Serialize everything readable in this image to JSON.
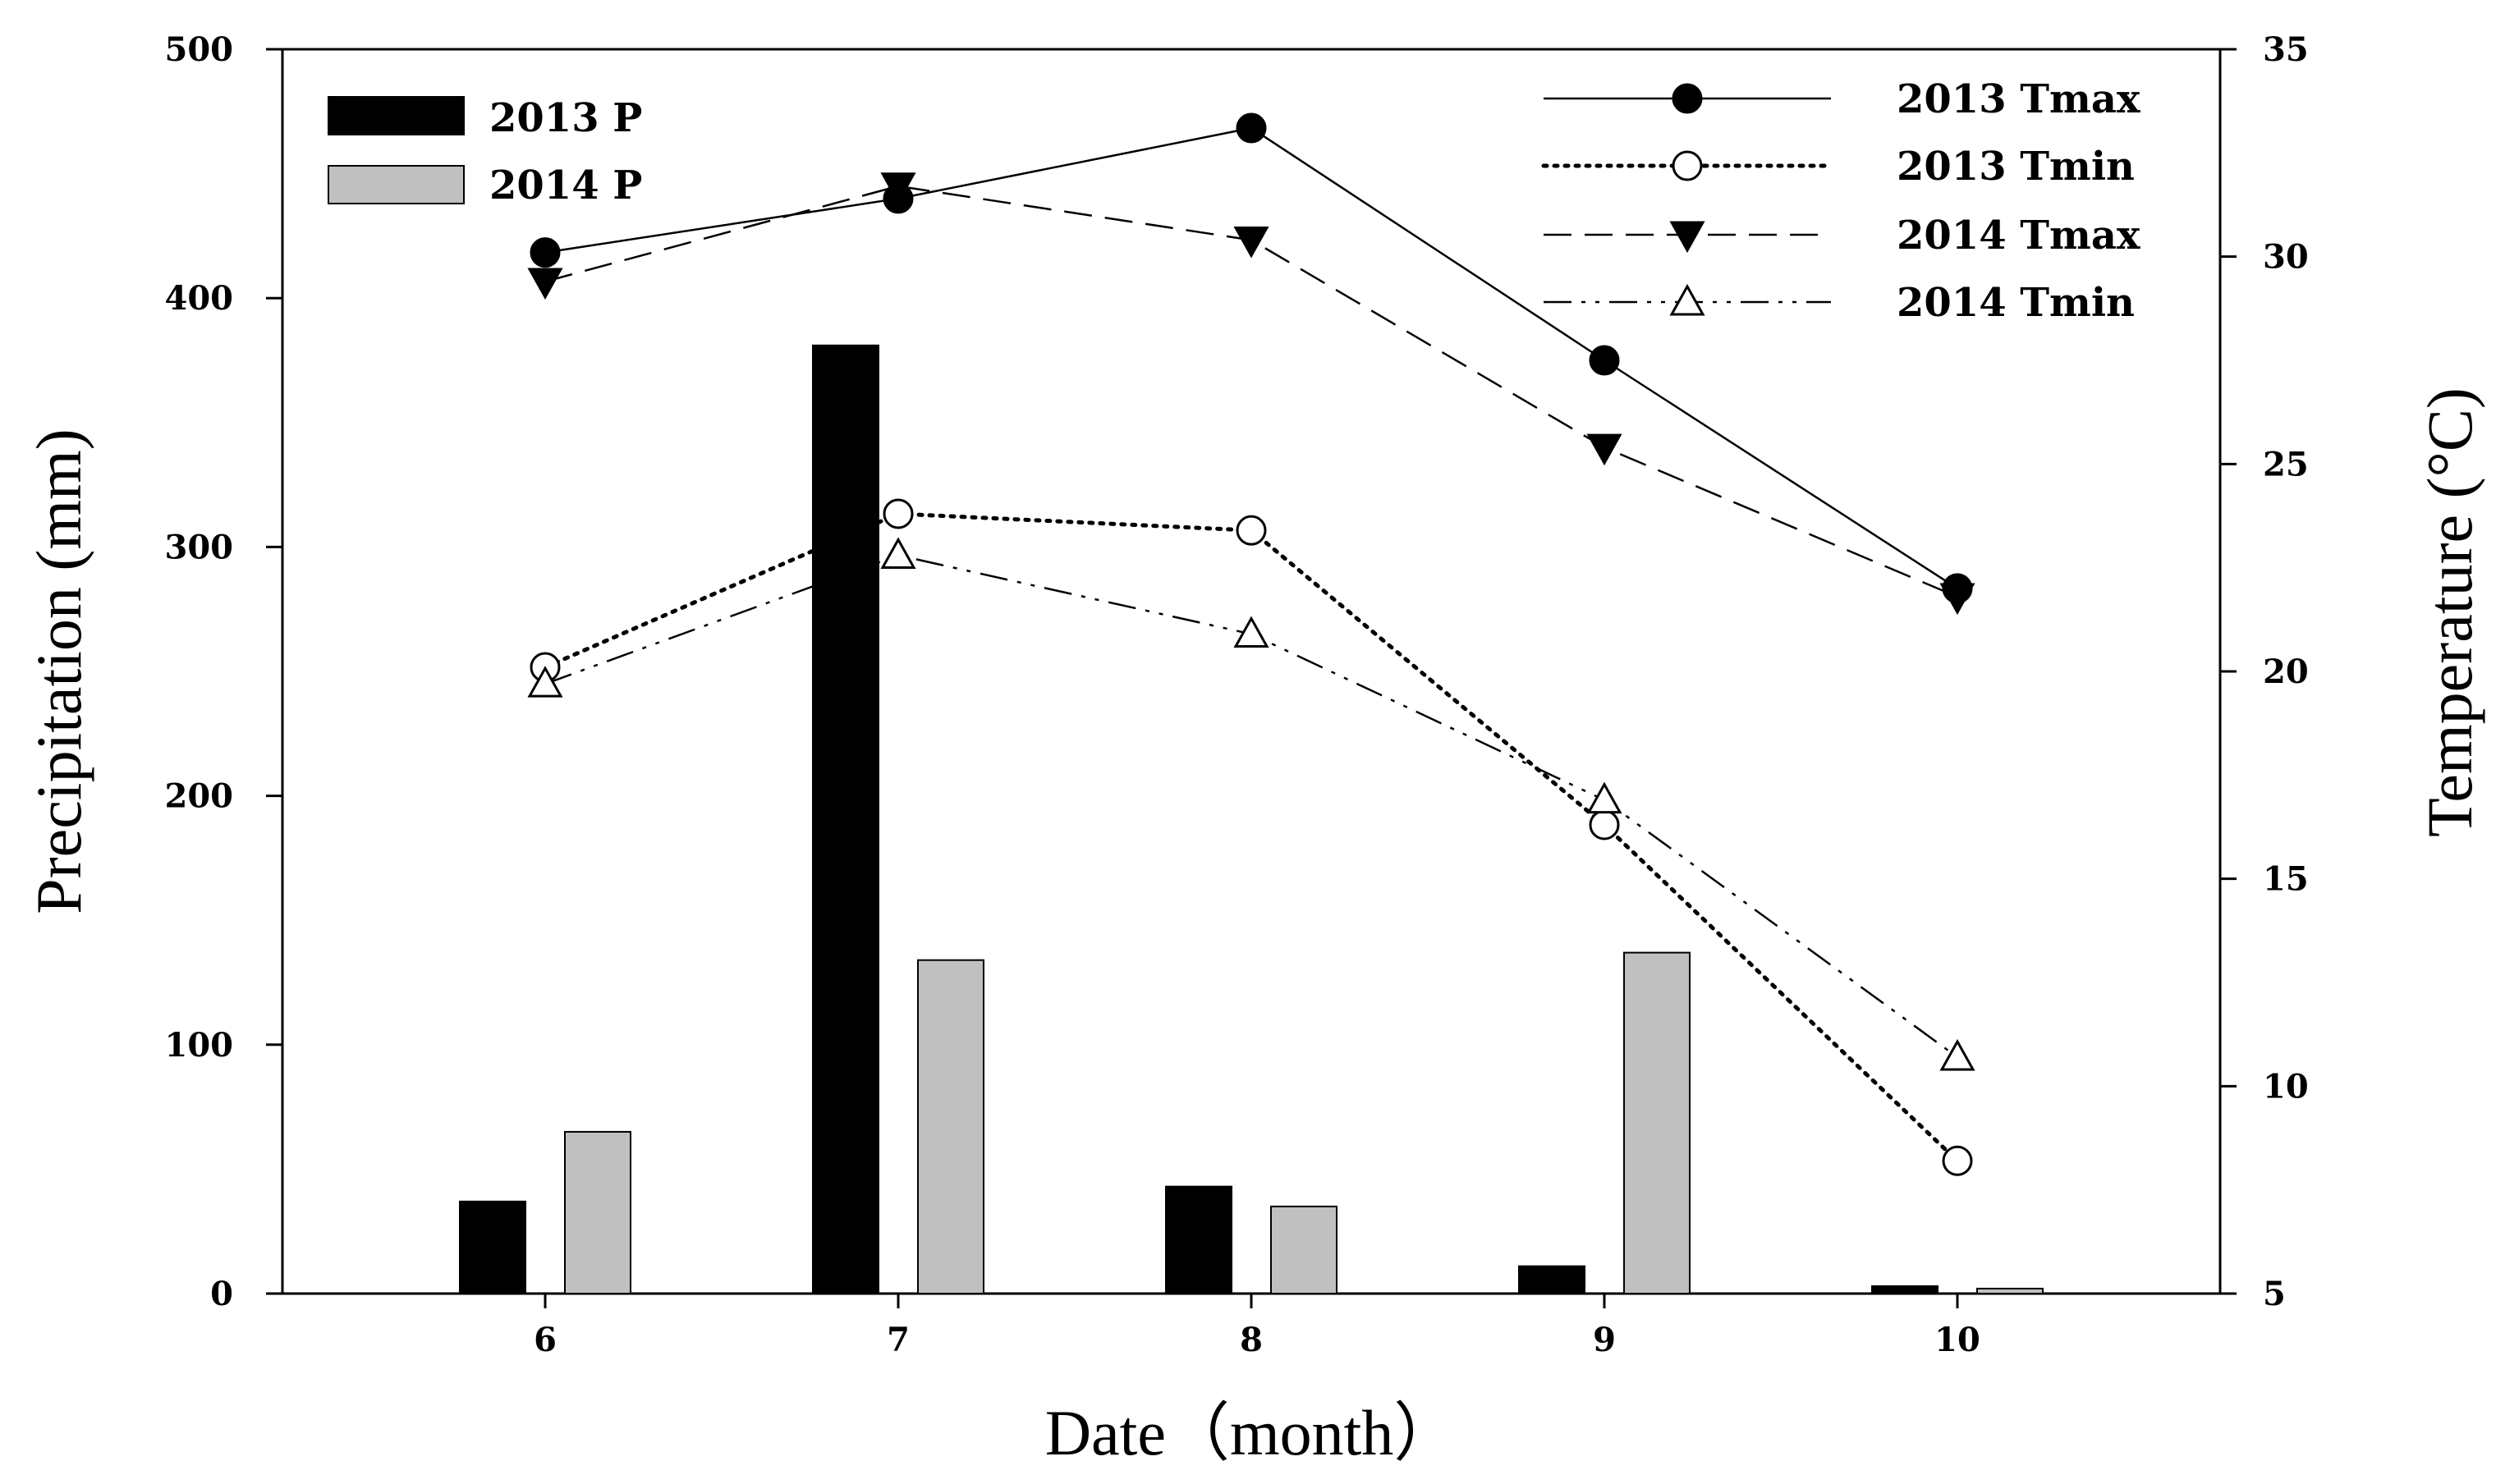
{
  "chart_data": {
    "type": "bar+line",
    "xlabel": "Date（month）",
    "ylabel_left": "Precipitation (mm)",
    "ylabel_right": "Temperature (°C)",
    "categories": [
      "6",
      "7",
      "8",
      "9",
      "10"
    ],
    "ylim_left": [
      0,
      500
    ],
    "yticks_left": [
      "0",
      "100",
      "200",
      "300",
      "400",
      "500"
    ],
    "ylim_right": [
      5,
      35
    ],
    "yticks_right": [
      "5",
      "10",
      "15",
      "20",
      "25",
      "30",
      "35"
    ],
    "bar_series": [
      {
        "name": "2013 P",
        "color": "#000000",
        "values": [
          37,
          381,
          43,
          11,
          3
        ]
      },
      {
        "name": "2014 P",
        "color": "#c0c0c0",
        "values": [
          65,
          134,
          35,
          137,
          2
        ]
      }
    ],
    "line_series": [
      {
        "name": "2013 Tmax",
        "marker": "filled-circle",
        "dash": "solid",
        "values": [
          30.1,
          31.4,
          33.1,
          27.5,
          22.0
        ]
      },
      {
        "name": "2013 Tmin",
        "marker": "open-circle",
        "dash": "dotted",
        "values": [
          20.1,
          23.8,
          23.4,
          16.3,
          8.2
        ]
      },
      {
        "name": "2014 Tmax",
        "marker": "filled-triangle-down",
        "dash": "dashed",
        "values": [
          29.4,
          31.7,
          30.4,
          25.4,
          21.8
        ]
      },
      {
        "name": "2014 Tmin",
        "marker": "open-triangle-up",
        "dash": "dash-dot-dot",
        "values": [
          19.7,
          22.8,
          20.9,
          16.9,
          10.7
        ]
      }
    ],
    "legend_bars_position": "top-left",
    "legend_lines_position": "top-right",
    "grid": false
  }
}
